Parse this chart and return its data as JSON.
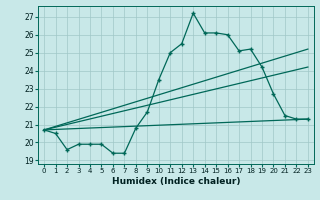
{
  "xlabel": "Humidex (Indice chaleur)",
  "bg_color": "#c8e8e8",
  "grid_color": "#a0c8c8",
  "line_color": "#006858",
  "xlim": [
    -0.5,
    23.5
  ],
  "ylim": [
    18.8,
    27.6
  ],
  "yticks": [
    19,
    20,
    21,
    22,
    23,
    24,
    25,
    26,
    27
  ],
  "xticks": [
    0,
    1,
    2,
    3,
    4,
    5,
    6,
    7,
    8,
    9,
    10,
    11,
    12,
    13,
    14,
    15,
    16,
    17,
    18,
    19,
    20,
    21,
    22,
    23
  ],
  "line1_x": [
    0,
    1,
    2,
    3,
    4,
    5,
    6,
    7,
    8,
    9,
    10,
    11,
    12,
    13,
    14,
    15,
    16,
    17,
    18,
    19,
    20,
    21,
    22,
    23
  ],
  "line1_y": [
    20.7,
    20.5,
    19.6,
    19.9,
    19.9,
    19.9,
    19.4,
    19.4,
    20.8,
    21.7,
    23.5,
    25.0,
    25.5,
    27.2,
    26.1,
    26.1,
    26.0,
    25.1,
    25.2,
    24.2,
    22.7,
    21.5,
    21.3,
    21.3
  ],
  "line2_x": [
    0,
    23
  ],
  "line2_y": [
    20.7,
    25.2
  ],
  "line3_x": [
    0,
    23
  ],
  "line3_y": [
    20.7,
    24.2
  ],
  "line4_x": [
    0,
    23
  ],
  "line4_y": [
    20.7,
    21.3
  ]
}
